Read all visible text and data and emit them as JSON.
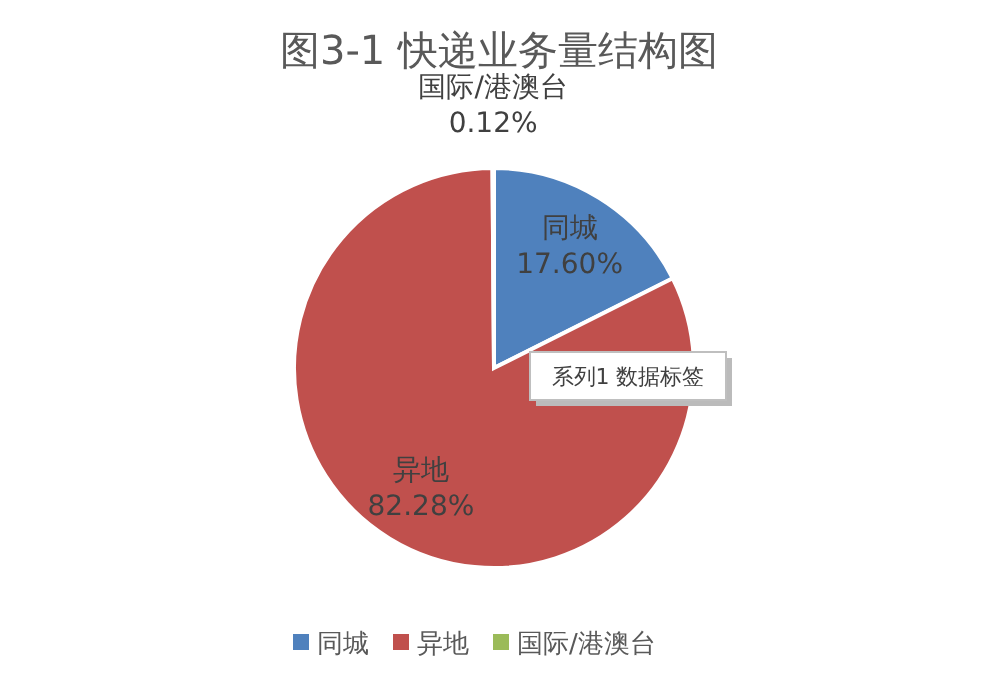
{
  "chart_data": {
    "type": "pie",
    "title": "图3-1  快递业务量结构图",
    "categories": [
      "同城",
      "异地",
      "国际/港澳台"
    ],
    "values": [
      17.6,
      82.28,
      0.12
    ],
    "value_labels": [
      "17.60%",
      "82.28%",
      "0.12%"
    ],
    "colors": [
      "#4f81bd",
      "#c0504d",
      "#9bbb59"
    ],
    "annotations": [
      "系列1 数据标签"
    ],
    "legend": "bottom"
  }
}
